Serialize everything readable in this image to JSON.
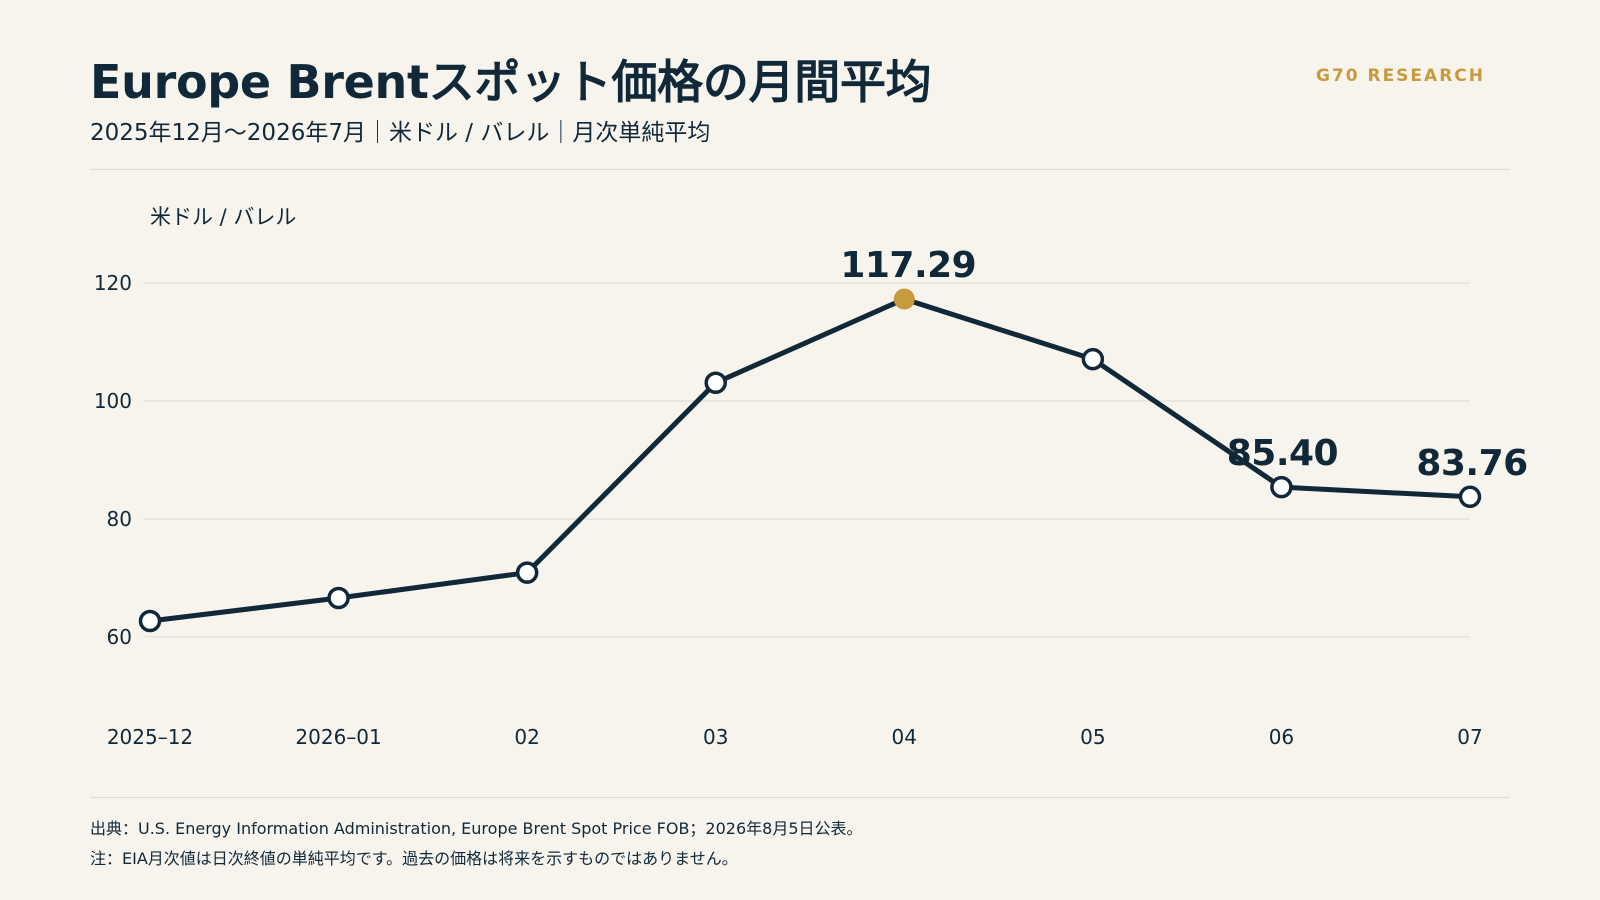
{
  "header": {
    "title": "Europe Brentスポット価格の月間平均",
    "subtitle": "2025年12月〜2026年7月｜米ドル / バレル｜月次単純平均",
    "brand": "G70 RESEARCH"
  },
  "footer": {
    "source": "出典：U.S. Energy Information Administration, Europe Brent Spot Price FOB；2026年8月5日公表。",
    "note": "注：EIA月次値は日次終値の単純平均です。過去の価格は将来を示すものではありません。"
  },
  "colors": {
    "background": "#f7f4ee",
    "line": "#102838",
    "accent": "#c79a3e",
    "grid": "#dedad2",
    "text": "#102838"
  },
  "chart_data": {
    "type": "line",
    "title": "Europe Brentスポット価格の月間平均",
    "ylabel": "米ドル / バレル",
    "xlabel": "",
    "categories": [
      "2025–12",
      "2026–01",
      "02",
      "03",
      "04",
      "05",
      "06",
      "07"
    ],
    "series": [
      {
        "values": [
          62.7,
          66.6,
          70.9,
          103.1,
          117.29,
          107.1,
          85.4,
          83.76
        ]
      }
    ],
    "data_labels": [
      {
        "index": 4,
        "text": "117.29",
        "highlight": true
      },
      {
        "index": 6,
        "text": "85.40",
        "highlight": false
      },
      {
        "index": 7,
        "text": "83.76",
        "highlight": false
      }
    ],
    "ylim": [
      51,
      129
    ],
    "yticks": [
      60,
      80,
      100,
      120
    ],
    "grid": true,
    "legend": "none"
  }
}
